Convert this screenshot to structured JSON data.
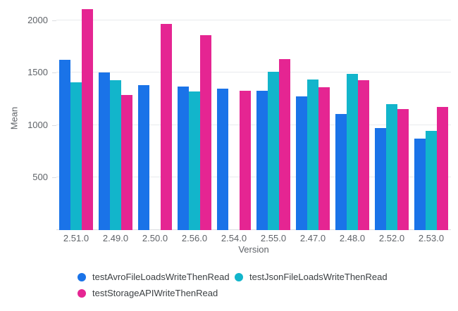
{
  "chart_data": {
    "type": "bar",
    "title": "",
    "xlabel": "Version",
    "ylabel": "Mean",
    "categories": [
      "2.51.0",
      "2.49.0",
      "2.50.0",
      "2.56.0",
      "2.54.0",
      "2.55.0",
      "2.47.0",
      "2.48.0",
      "2.52.0",
      "2.53.0"
    ],
    "series": [
      {
        "name": "testAvroFileLoadsWriteThenRead",
        "color": "#1A73E8",
        "values": [
          1620,
          1500,
          1380,
          1365,
          1345,
          1330,
          1275,
          1105,
          975,
          870
        ]
      },
      {
        "name": "testJsonFileLoadsWriteThenRead",
        "color": "#12B5CB",
        "values": [
          1405,
          1425,
          null,
          1320,
          null,
          1510,
          1435,
          1490,
          1200,
          945
        ]
      },
      {
        "name": "testStorageAPIWriteThenRead",
        "color": "#E52592",
        "values": [
          2105,
          1290,
          1965,
          1855,
          1330,
          1630,
          1360,
          1430,
          1155,
          1175
        ]
      }
    ],
    "yticks": [
      500,
      1000,
      1500,
      2000
    ],
    "ylim": [
      0,
      2125
    ],
    "grid": true,
    "legend_position": "bottom"
  },
  "colors": {
    "background": "#FFFFFF",
    "gridline": "#E8EAED",
    "axis_line": "#DADCE0",
    "tick_text": "#5F6368",
    "axis_title_text": "#5F6368",
    "legend_text": "#3C4043"
  }
}
